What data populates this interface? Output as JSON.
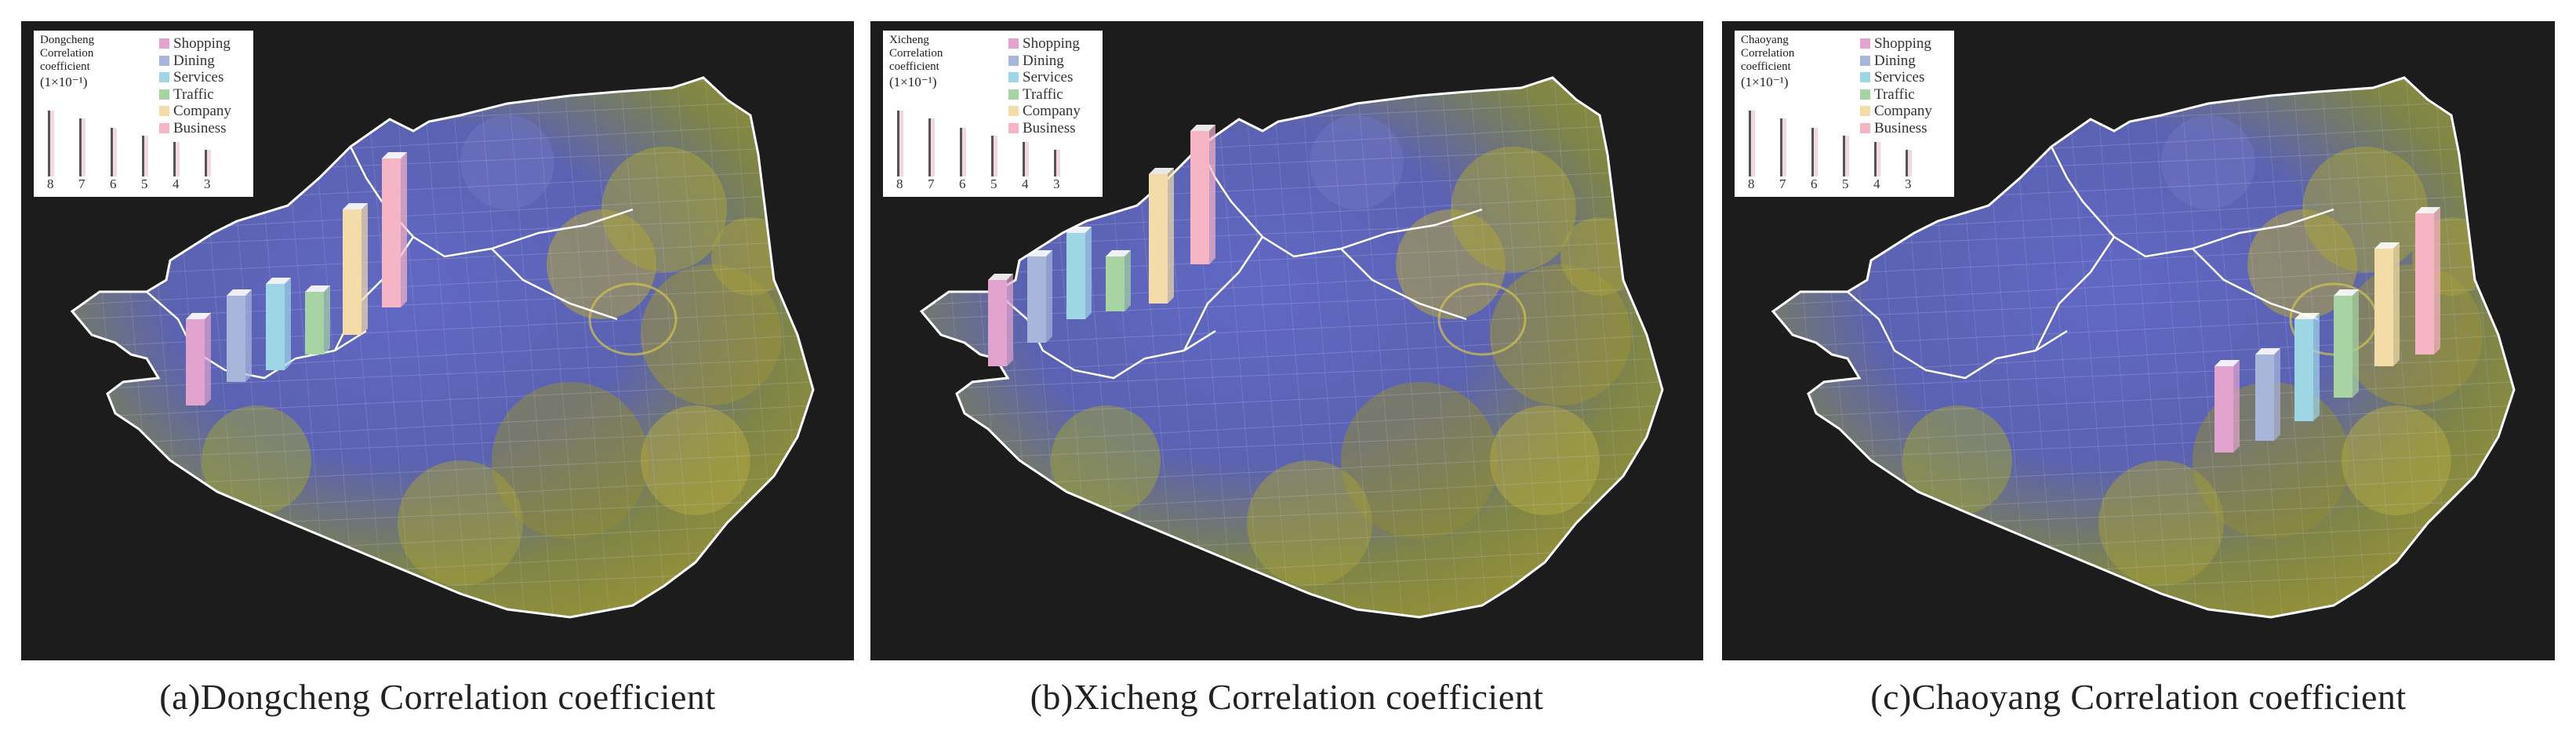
{
  "panels": [
    {
      "district": "Dongcheng",
      "caption": "(a)Dongcheng Correlation coefficient",
      "legend": {
        "title_lines": [
          "Dongcheng",
          "Correlation",
          "coefficient"
        ],
        "unit": "(1×10⁻¹)"
      }
    },
    {
      "district": "Xicheng",
      "caption": "(b)Xicheng Correlation coefficient",
      "legend": {
        "title_lines": [
          "Xicheng",
          "Correlation",
          "coefficient"
        ],
        "unit": "(1×10⁻¹)"
      }
    },
    {
      "district": "Chaoyang",
      "caption": "(c)Chaoyang Correlation coefficient",
      "legend": {
        "title_lines": [
          "Chaoyang",
          "Correlation",
          "coefficient"
        ],
        "unit": "(1×10⁻¹)"
      }
    }
  ],
  "categories": [
    {
      "name": "Shopping",
      "color": "#e2a4cf"
    },
    {
      "name": "Dining",
      "color": "#a9b6dc"
    },
    {
      "name": "Services",
      "color": "#9fd6e6"
    },
    {
      "name": "Traffic",
      "color": "#a7d4a2"
    },
    {
      "name": "Company",
      "color": "#f4dca8"
    },
    {
      "name": "Business",
      "color": "#f6b5c4"
    }
  ],
  "scale_ticks": [
    "8",
    "7",
    "6",
    "5",
    "4",
    "3"
  ],
  "colors": {
    "background": "#1c1c1c",
    "urban_core": "#5a62b8",
    "periphery": "#8e9a3a",
    "boundary": "#ffffff"
  }
}
